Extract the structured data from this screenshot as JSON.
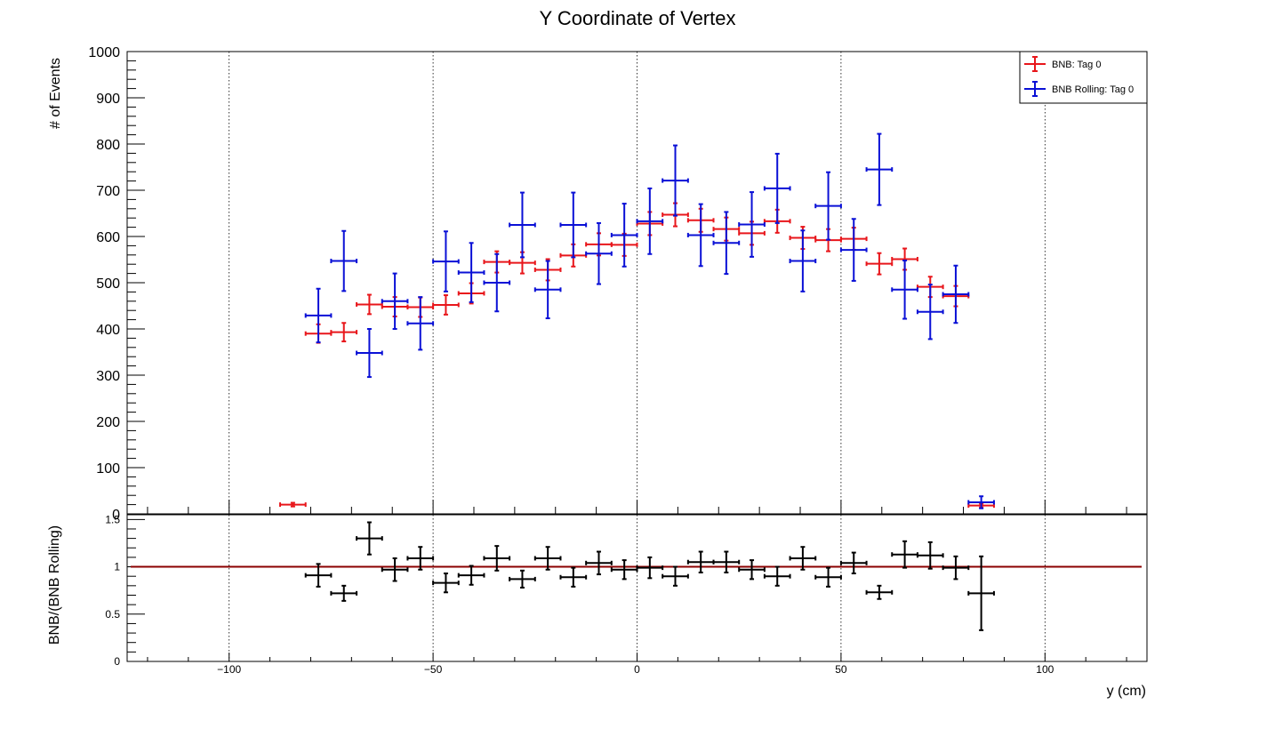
{
  "chart_data": [
    {
      "type": "scatter",
      "title": "Y Coordinate of Vertex",
      "xlabel": "y (cm)",
      "ylabel": "# of Events",
      "xlim": [
        -125,
        125
      ],
      "ylim": [
        0,
        1000
      ],
      "x_ticks": [
        -100,
        -50,
        0,
        50,
        100
      ],
      "x_tick_labels": [
        "−100",
        "−50",
        "0",
        "50",
        "100"
      ],
      "y_ticks": [
        0,
        100,
        200,
        300,
        400,
        500,
        600,
        700,
        800,
        900,
        1000
      ],
      "y_tick_labels": [
        "0",
        "100",
        "200",
        "300",
        "400",
        "500",
        "600",
        "700",
        "800",
        "900",
        "1000"
      ],
      "grid": "vertical dotted lines at major x ticks",
      "legend": "top-right",
      "bin_half_width": 3.125,
      "series": [
        {
          "name": "BNB: Tag 0",
          "color": "#e8161b",
          "x": [
            -84.375,
            -78.125,
            -71.875,
            -65.625,
            -59.375,
            -53.125,
            -46.875,
            -40.625,
            -34.375,
            -28.125,
            -21.875,
            -15.625,
            -9.375,
            -3.125,
            3.125,
            9.375,
            15.625,
            21.875,
            28.125,
            34.375,
            40.625,
            46.875,
            53.125,
            59.375,
            65.625,
            71.875,
            78.125,
            84.375
          ],
          "y": [
            20,
            390,
            393,
            453,
            448,
            447,
            452,
            477,
            545,
            543,
            528,
            559,
            583,
            582,
            628,
            647,
            635,
            616,
            607,
            633,
            597,
            592,
            595,
            541,
            551,
            491,
            471,
            18
          ],
          "err": [
            4,
            20,
            20,
            21,
            21,
            21,
            21,
            22,
            23,
            23,
            23,
            24,
            24,
            24,
            25,
            25,
            25,
            25,
            25,
            25,
            24,
            24,
            24,
            23,
            23,
            22,
            22,
            4
          ]
        },
        {
          "name": "BNB Rolling: Tag 0",
          "color": "#0a10d6",
          "x": [
            -78.125,
            -71.875,
            -65.625,
            -59.375,
            -53.125,
            -46.875,
            -40.625,
            -34.375,
            -28.125,
            -21.875,
            -15.625,
            -9.375,
            -3.125,
            3.125,
            9.375,
            15.625,
            21.875,
            28.125,
            34.375,
            40.625,
            46.875,
            53.125,
            59.375,
            65.625,
            71.875,
            78.125,
            84.375
          ],
          "y": [
            429,
            547,
            348,
            460,
            412,
            546,
            522,
            500,
            625,
            485,
            625,
            563,
            603,
            633,
            721,
            603,
            586,
            626,
            704,
            547,
            666,
            571,
            745,
            485,
            437,
            475,
            25
          ],
          "err": [
            58,
            65,
            52,
            60,
            57,
            65,
            64,
            62,
            70,
            62,
            70,
            66,
            68,
            71,
            76,
            67,
            67,
            70,
            75,
            66,
            73,
            67,
            77,
            63,
            59,
            62,
            13
          ]
        }
      ]
    },
    {
      "type": "scatter",
      "title": "",
      "xlabel": "y (cm)",
      "ylabel": "BNB/(BNB Rolling)",
      "xlim": [
        -125,
        125
      ],
      "ylim": [
        0,
        1.55
      ],
      "y_ticks": [
        0,
        0.5,
        1,
        1.5
      ],
      "y_tick_labels": [
        "0",
        "0.5",
        "1",
        "1.5"
      ],
      "reference_line": 1,
      "reference_color": "#8b0000",
      "series": [
        {
          "name": "",
          "color": "#000000",
          "x": [
            -78.125,
            -71.875,
            -65.625,
            -59.375,
            -53.125,
            -46.875,
            -40.625,
            -34.375,
            -28.125,
            -21.875,
            -15.625,
            -9.375,
            -3.125,
            3.125,
            9.375,
            15.625,
            21.875,
            28.125,
            34.375,
            40.625,
            46.875,
            53.125,
            59.375,
            65.625,
            71.875,
            78.125,
            84.375
          ],
          "y": [
            0.91,
            0.72,
            1.3,
            0.97,
            1.09,
            0.83,
            0.91,
            1.09,
            0.87,
            1.09,
            0.89,
            1.04,
            0.97,
            0.99,
            0.9,
            1.05,
            1.05,
            0.97,
            0.9,
            1.09,
            0.89,
            1.04,
            0.73,
            1.13,
            1.12,
            0.99,
            0.72
          ],
          "err": [
            0.12,
            0.08,
            0.17,
            0.12,
            0.12,
            0.1,
            0.1,
            0.13,
            0.09,
            0.12,
            0.1,
            0.12,
            0.1,
            0.11,
            0.1,
            0.11,
            0.11,
            0.1,
            0.1,
            0.12,
            0.1,
            0.11,
            0.07,
            0.14,
            0.14,
            0.12,
            0.39
          ]
        }
      ]
    }
  ]
}
